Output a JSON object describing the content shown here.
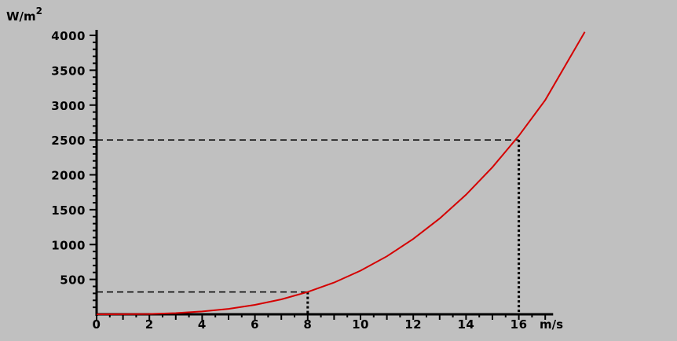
{
  "chart_data": {
    "type": "line",
    "title": "",
    "xlabel": "m/s",
    "ylabel": "W/m²",
    "ylabel_base": "W/m",
    "ylabel_sup": "2",
    "xlim": [
      0,
      17.3
    ],
    "ylim": [
      0,
      4000
    ],
    "x_ticks": [
      0,
      2,
      4,
      6,
      8,
      10,
      12,
      14,
      16
    ],
    "x_tick_labels": [
      "0",
      "2",
      "4",
      "6",
      "8",
      "10",
      "12",
      "14",
      "16"
    ],
    "y_ticks": [
      500,
      1000,
      1500,
      2000,
      2500,
      3000,
      3500,
      4000
    ],
    "y_tick_labels": [
      "500",
      "1000",
      "1500",
      "2000",
      "2500",
      "3000",
      "3500",
      "4000"
    ],
    "series": [
      {
        "color": "#d40000",
        "x": [
          0,
          1,
          2,
          3,
          4,
          5,
          6,
          7,
          8,
          9,
          10,
          11,
          12,
          13,
          14,
          15,
          16,
          17,
          18.5
        ],
        "y": [
          0,
          1,
          5,
          17,
          40,
          78,
          135,
          214,
          320,
          455,
          625,
          832,
          1080,
          1373,
          1715,
          2109,
          2560,
          3071,
          4050
        ]
      }
    ],
    "reference_lines": [
      {
        "x": 8,
        "y": 320
      },
      {
        "x": 16,
        "y": 2500
      }
    ],
    "grid": false,
    "legend": "none"
  }
}
